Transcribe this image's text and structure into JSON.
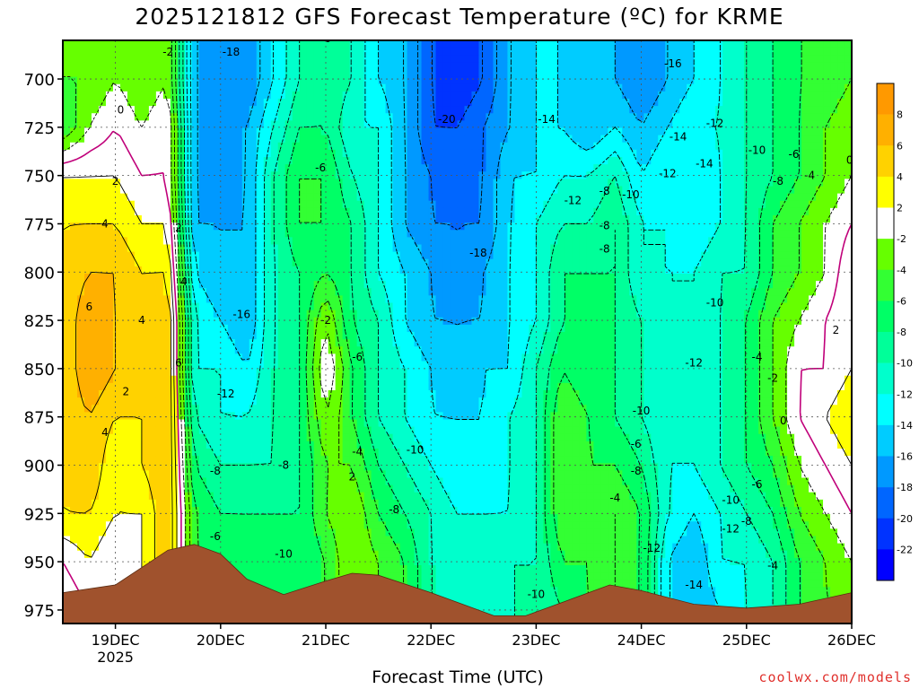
{
  "title": "2025121812 GFS Forecast Temperature (ºC) for KRME",
  "xlabel": "Forecast Time (UTC)",
  "credit": "coolwx.com/models",
  "chart_data": {
    "type": "heatmap",
    "title": "2025121812 GFS Forecast Temperature (ºC) for KRME",
    "xlabel": "Forecast Time (UTC)",
    "ylabel": "",
    "x_ticks": [
      "19DEC",
      "20DEC",
      "21DEC",
      "22DEC",
      "23DEC",
      "24DEC",
      "25DEC",
      "26DEC"
    ],
    "x_year": "2025",
    "x_range_days": [
      18.5,
      26.0
    ],
    "y_ticks": [
      700,
      725,
      750,
      775,
      800,
      825,
      850,
      875,
      900,
      925,
      950,
      975
    ],
    "y_range": [
      680,
      982
    ],
    "y_direction": "pressure increasing downward",
    "grid": true,
    "colorbar": {
      "ticks": [
        8,
        6,
        4,
        2,
        -2,
        -4,
        -6,
        -8,
        -10,
        -12,
        -14,
        -16,
        -18,
        -20,
        -22
      ],
      "bins": [
        {
          "lo": 8,
          "hi": 10,
          "color": "#ff9900"
        },
        {
          "lo": 6,
          "hi": 8,
          "color": "#ffb000"
        },
        {
          "lo": 4,
          "hi": 6,
          "color": "#ffd200"
        },
        {
          "lo": 2,
          "hi": 4,
          "color": "#ffff00"
        },
        {
          "lo": -2,
          "hi": 2,
          "color": "#ffffff"
        },
        {
          "lo": -4,
          "hi": -2,
          "color": "#66ff00"
        },
        {
          "lo": -6,
          "hi": -4,
          "color": "#33ff33"
        },
        {
          "lo": -8,
          "hi": -6,
          "color": "#00ff66"
        },
        {
          "lo": -10,
          "hi": -8,
          "color": "#00ff99"
        },
        {
          "lo": -12,
          "hi": -10,
          "color": "#00ffcc"
        },
        {
          "lo": -14,
          "hi": -12,
          "color": "#00ffff"
        },
        {
          "lo": -16,
          "hi": -14,
          "color": "#00ccff"
        },
        {
          "lo": -18,
          "hi": -16,
          "color": "#0099ff"
        },
        {
          "lo": -20,
          "hi": -18,
          "color": "#0066ff"
        },
        {
          "lo": -22,
          "hi": -20,
          "color": "#0033ff"
        },
        {
          "lo": -24,
          "hi": -22,
          "color": "#0000ff"
        }
      ]
    },
    "terrain_color": "#a0522d",
    "freezing_contour_color": "#c0007a",
    "temperature_field": [
      {
        "day": 18.5,
        "temps": [
          -4,
          -6,
          2,
          4,
          4,
          4,
          4,
          4,
          4,
          4,
          0,
          -2
        ]
      },
      {
        "day": 18.75,
        "temps": [
          -4,
          -2,
          2,
          4,
          6,
          8,
          8,
          6,
          6,
          4,
          2,
          0
        ]
      },
      {
        "day": 19.0,
        "temps": [
          -2,
          0,
          2,
          4,
          6,
          6,
          6,
          4,
          2,
          2,
          0,
          0
        ]
      },
      {
        "day": 19.25,
        "temps": [
          -4,
          -2,
          0,
          2,
          4,
          4,
          4,
          4,
          4,
          2,
          2,
          2
        ]
      },
      {
        "day": 19.5,
        "temps": [
          -2,
          0,
          0,
          2,
          4,
          6,
          6,
          6,
          6,
          6,
          6,
          6
        ]
      },
      {
        "day": 19.75,
        "temps": [
          -16,
          -16,
          -16,
          -16,
          -14,
          -12,
          -12,
          -10,
          -8,
          -6,
          -6,
          -6
        ]
      },
      {
        "day": 20.0,
        "temps": [
          -18,
          -18,
          -18,
          -16,
          -16,
          -14,
          -12,
          -12,
          -10,
          -8,
          -6,
          -6
        ]
      },
      {
        "day": 20.25,
        "temps": [
          -18,
          -16,
          -16,
          -16,
          -16,
          -16,
          -14,
          -12,
          -10,
          -8,
          -8,
          -8
        ]
      },
      {
        "day": 20.5,
        "temps": [
          -14,
          -12,
          -10,
          -10,
          -10,
          -10,
          -10,
          -10,
          -10,
          -8,
          -8,
          -8
        ]
      },
      {
        "day": 20.75,
        "temps": [
          -10,
          -8,
          -6,
          -6,
          -8,
          -8,
          -8,
          -8,
          -8,
          -8,
          -8,
          -8
        ]
      },
      {
        "day": 21.0,
        "temps": [
          -8,
          -8,
          -6,
          -6,
          -6,
          -2,
          0,
          -2,
          -4,
          -4,
          -6,
          -6
        ]
      },
      {
        "day": 21.25,
        "temps": [
          -10,
          -12,
          -10,
          -8,
          -8,
          -8,
          -6,
          -6,
          -4,
          -2,
          -2,
          -2
        ]
      },
      {
        "day": 21.5,
        "temps": [
          -14,
          -12,
          -12,
          -12,
          -12,
          -10,
          -10,
          -10,
          -8,
          -6,
          -4,
          -4
        ]
      },
      {
        "day": 21.75,
        "temps": [
          -16,
          -16,
          -16,
          -16,
          -14,
          -14,
          -12,
          -12,
          -10,
          -8,
          -6,
          -6
        ]
      },
      {
        "day": 22.0,
        "temps": [
          -20,
          -20,
          -18,
          -18,
          -16,
          -16,
          -14,
          -14,
          -12,
          -10,
          -10,
          -10
        ]
      },
      {
        "day": 22.25,
        "temps": [
          -22,
          -20,
          -20,
          -18,
          -18,
          -16,
          -16,
          -14,
          -14,
          -12,
          -12,
          -12
        ]
      },
      {
        "day": 22.5,
        "temps": [
          -20,
          -18,
          -18,
          -18,
          -16,
          -16,
          -14,
          -14,
          -14,
          -12,
          -12,
          -12
        ]
      },
      {
        "day": 22.75,
        "temps": [
          -16,
          -16,
          -14,
          -14,
          -14,
          -14,
          -14,
          -12,
          -12,
          -12,
          -10,
          -10
        ]
      },
      {
        "day": 23.0,
        "temps": [
          -14,
          -14,
          -14,
          -12,
          -12,
          -12,
          -10,
          -10,
          -10,
          -10,
          -10,
          -10
        ]
      },
      {
        "day": 23.25,
        "temps": [
          -14,
          -14,
          -12,
          -10,
          -8,
          -8,
          -6,
          -4,
          -4,
          -4,
          -6,
          -8
        ]
      },
      {
        "day": 23.5,
        "temps": [
          -16,
          -16,
          -12,
          -10,
          -8,
          -8,
          -8,
          -6,
          -6,
          -6,
          -6,
          -6
        ]
      },
      {
        "day": 23.75,
        "temps": [
          -16,
          -14,
          -10,
          -8,
          -8,
          -8,
          -8,
          -8,
          -6,
          -4,
          -4,
          -4
        ]
      },
      {
        "day": 24.0,
        "temps": [
          -18,
          -16,
          -14,
          -12,
          -12,
          -10,
          -10,
          -10,
          -8,
          -6,
          -6,
          -6
        ]
      },
      {
        "day": 24.25,
        "temps": [
          -16,
          -14,
          -12,
          -12,
          -12,
          -12,
          -12,
          -12,
          -12,
          -12,
          -14,
          -14
        ]
      },
      {
        "day": 24.5,
        "temps": [
          -14,
          -12,
          -14,
          -14,
          -12,
          -12,
          -12,
          -12,
          -12,
          -14,
          -16,
          -16
        ]
      },
      {
        "day": 24.75,
        "temps": [
          -12,
          -12,
          -12,
          -12,
          -10,
          -10,
          -10,
          -10,
          -10,
          -12,
          -12,
          -14
        ]
      },
      {
        "day": 25.0,
        "temps": [
          -10,
          -10,
          -10,
          -10,
          -10,
          -8,
          -8,
          -8,
          -8,
          -10,
          -12,
          -12
        ]
      },
      {
        "day": 25.25,
        "temps": [
          -8,
          -8,
          -8,
          -6,
          -6,
          -4,
          -4,
          -4,
          -6,
          -8,
          -10,
          -10
        ]
      },
      {
        "day": 25.5,
        "temps": [
          -6,
          -6,
          -6,
          -4,
          -4,
          -2,
          0,
          0,
          -2,
          -4,
          -6,
          -6
        ]
      },
      {
        "day": 25.75,
        "temps": [
          -6,
          -4,
          -4,
          -2,
          -2,
          0,
          0,
          2,
          0,
          -2,
          -4,
          -4
        ]
      },
      {
        "day": 26.0,
        "temps": [
          -4,
          -2,
          -2,
          0,
          2,
          2,
          2,
          4,
          2,
          0,
          -2,
          -4
        ]
      }
    ],
    "surface_pressure": [
      {
        "day": 18.5,
        "p": 966
      },
      {
        "day": 19.0,
        "p": 962
      },
      {
        "day": 19.5,
        "p": 944
      },
      {
        "day": 19.75,
        "p": 941
      },
      {
        "day": 20.0,
        "p": 946
      },
      {
        "day": 20.25,
        "p": 959
      },
      {
        "day": 20.6,
        "p": 967
      },
      {
        "day": 21.0,
        "p": 960
      },
      {
        "day": 21.25,
        "p": 956
      },
      {
        "day": 21.5,
        "p": 957
      },
      {
        "day": 22.0,
        "p": 966
      },
      {
        "day": 22.6,
        "p": 978
      },
      {
        "day": 22.9,
        "p": 978
      },
      {
        "day": 23.3,
        "p": 970
      },
      {
        "day": 23.7,
        "p": 962
      },
      {
        "day": 24.0,
        "p": 965
      },
      {
        "day": 24.5,
        "p": 972
      },
      {
        "day": 25.0,
        "p": 974
      },
      {
        "day": 25.5,
        "p": 972
      },
      {
        "day": 26.0,
        "p": 966
      }
    ],
    "contour_labels": [
      {
        "day": 19.5,
        "p": 686,
        "text": "-2"
      },
      {
        "day": 19.05,
        "p": 716,
        "text": "0"
      },
      {
        "day": 19.0,
        "p": 753,
        "text": "2"
      },
      {
        "day": 18.9,
        "p": 775,
        "text": "4"
      },
      {
        "day": 18.75,
        "p": 818,
        "text": "6"
      },
      {
        "day": 19.25,
        "p": 825,
        "text": "4"
      },
      {
        "day": 19.6,
        "p": 777,
        "text": "2"
      },
      {
        "day": 19.65,
        "p": 805,
        "text": "4"
      },
      {
        "day": 19.6,
        "p": 847,
        "text": "6"
      },
      {
        "day": 19.1,
        "p": 862,
        "text": "2"
      },
      {
        "day": 18.9,
        "p": 883,
        "text": "4"
      },
      {
        "day": 20.1,
        "p": 686,
        "text": "-18"
      },
      {
        "day": 20.2,
        "p": 822,
        "text": "-16"
      },
      {
        "day": 20.05,
        "p": 863,
        "text": "-12"
      },
      {
        "day": 19.95,
        "p": 903,
        "text": "-8"
      },
      {
        "day": 19.95,
        "p": 937,
        "text": "-6"
      },
      {
        "day": 20.6,
        "p": 946,
        "text": "-10"
      },
      {
        "day": 20.6,
        "p": 900,
        "text": "-8"
      },
      {
        "day": 20.95,
        "p": 746,
        "text": "-6"
      },
      {
        "day": 21.0,
        "p": 679,
        "text": "-6"
      },
      {
        "day": 21.0,
        "p": 825,
        "text": "-2"
      },
      {
        "day": 21.3,
        "p": 844,
        "text": "-6"
      },
      {
        "day": 21.3,
        "p": 893,
        "text": "-4"
      },
      {
        "day": 21.25,
        "p": 906,
        "text": "2"
      },
      {
        "day": 21.85,
        "p": 892,
        "text": "-10"
      },
      {
        "day": 21.65,
        "p": 923,
        "text": "-8"
      },
      {
        "day": 22.15,
        "p": 721,
        "text": "-20"
      },
      {
        "day": 22.45,
        "p": 790,
        "text": "-18"
      },
      {
        "day": 23.1,
        "p": 721,
        "text": "-14"
      },
      {
        "day": 23.35,
        "p": 763,
        "text": "-12"
      },
      {
        "day": 23.65,
        "p": 758,
        "text": "-8"
      },
      {
        "day": 23.9,
        "p": 760,
        "text": "-10"
      },
      {
        "day": 23.65,
        "p": 776,
        "text": "-8"
      },
      {
        "day": 23.65,
        "p": 788,
        "text": "-8"
      },
      {
        "day": 23.0,
        "p": 967,
        "text": "-10"
      },
      {
        "day": 24.3,
        "p": 692,
        "text": "-16"
      },
      {
        "day": 24.35,
        "p": 730,
        "text": "-14"
      },
      {
        "day": 24.7,
        "p": 723,
        "text": "-12"
      },
      {
        "day": 24.6,
        "p": 744,
        "text": "-14"
      },
      {
        "day": 24.25,
        "p": 749,
        "text": "-12"
      },
      {
        "day": 25.1,
        "p": 737,
        "text": "-10"
      },
      {
        "day": 25.45,
        "p": 739,
        "text": "-6"
      },
      {
        "day": 25.3,
        "p": 753,
        "text": "-8"
      },
      {
        "day": 25.6,
        "p": 750,
        "text": "-4"
      },
      {
        "day": 25.98,
        "p": 742,
        "text": "0"
      },
      {
        "day": 24.7,
        "p": 816,
        "text": "-10"
      },
      {
        "day": 24.5,
        "p": 847,
        "text": "-12"
      },
      {
        "day": 24.0,
        "p": 872,
        "text": "-10"
      },
      {
        "day": 23.95,
        "p": 889,
        "text": "-6"
      },
      {
        "day": 23.95,
        "p": 903,
        "text": "-8"
      },
      {
        "day": 23.75,
        "p": 917,
        "text": "-4"
      },
      {
        "day": 24.1,
        "p": 943,
        "text": "-12"
      },
      {
        "day": 24.5,
        "p": 962,
        "text": "-14"
      },
      {
        "day": 24.85,
        "p": 918,
        "text": "-10"
      },
      {
        "day": 25.0,
        "p": 929,
        "text": "-8"
      },
      {
        "day": 24.85,
        "p": 933,
        "text": "-12"
      },
      {
        "day": 25.1,
        "p": 910,
        "text": "-6"
      },
      {
        "day": 25.1,
        "p": 844,
        "text": "-4"
      },
      {
        "day": 25.25,
        "p": 855,
        "text": "-2"
      },
      {
        "day": 25.25,
        "p": 952,
        "text": "-4"
      },
      {
        "day": 25.35,
        "p": 877,
        "text": "0"
      },
      {
        "day": 25.85,
        "p": 830,
        "text": "2"
      }
    ]
  }
}
